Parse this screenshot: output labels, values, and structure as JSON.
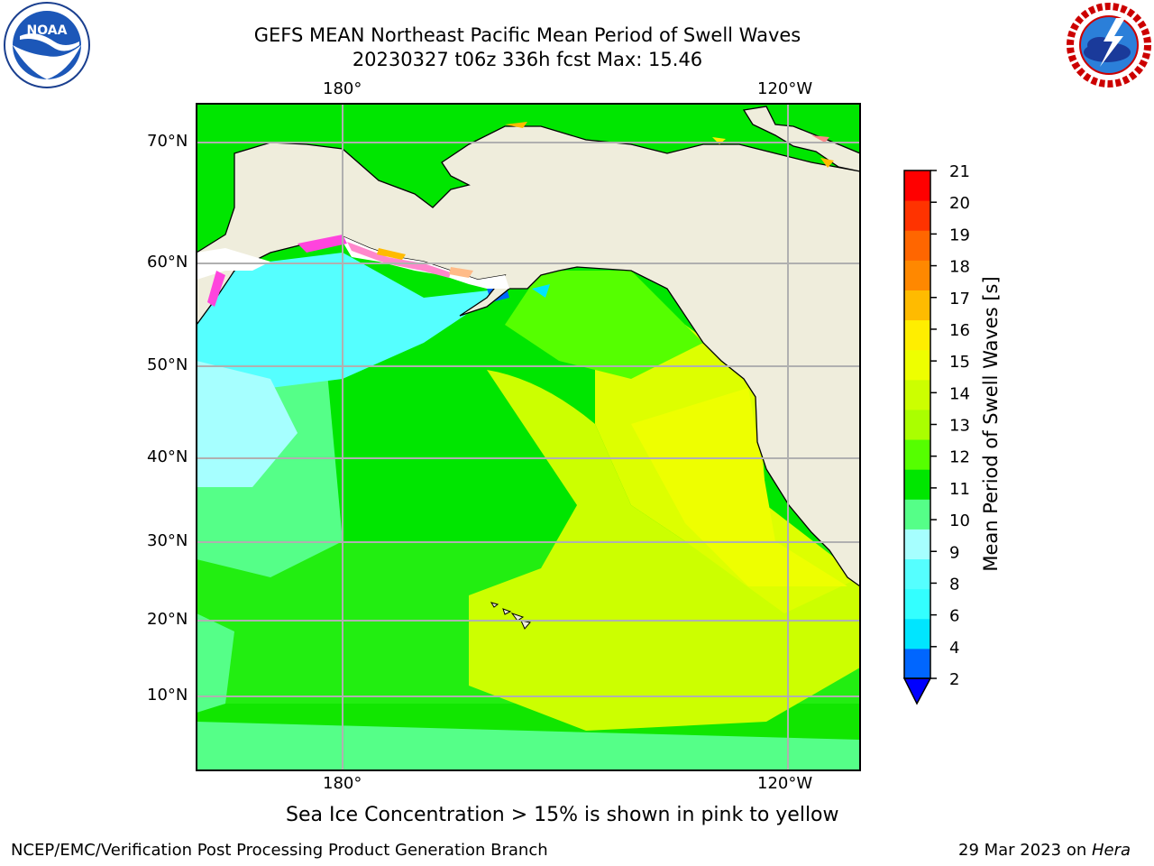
{
  "title": {
    "line1": "GEFS MEAN Northeast Pacific Mean Period of Swell Waves",
    "line2": "20230327 t06z 336h fcst   Max: 15.46"
  },
  "logos": {
    "left": {
      "icon": "noaa-logo",
      "text": "NOAA",
      "ring_text": "NATIONAL OCEANIC AND ATMOSPHERIC ADMINISTRATION · U.S. DEPARTMENT OF COMMERCE"
    },
    "right": {
      "icon": "nws-logo",
      "ring_text": "NATIONAL WEATHER SERVICE"
    }
  },
  "footer": {
    "caption": "Sea Ice Concentration > 15% is shown in pink to yellow",
    "left": "NCEP/EMC/Verification Post Processing Product Generation Branch",
    "right_date": "29 Mar 2023 on ",
    "right_host": "Hera"
  },
  "chart_data": {
    "type": "heatmap",
    "title": "GEFS MEAN Northeast Pacific Mean Period of Swell Waves",
    "projection": "lat-lon map",
    "x_ticks": [
      "180°",
      "120°W"
    ],
    "y_ticks": [
      "70°N",
      "60°N",
      "50°N",
      "40°N",
      "30°N",
      "20°N",
      "10°N"
    ],
    "max_value": 15.46,
    "colorbar": {
      "label": "Mean Period of Swell Waves [s]",
      "levels": [
        2,
        4,
        6,
        7,
        8,
        9,
        10,
        11,
        12,
        13,
        14,
        15,
        16,
        17,
        18,
        19,
        20,
        21
      ],
      "tick_labels": [
        "2",
        "4",
        "6",
        "8",
        "9",
        "10",
        "11",
        "12",
        "13",
        "14",
        "15",
        "16",
        "17",
        "18",
        "19",
        "20",
        "21"
      ],
      "colors": [
        "#0066ff",
        "#00e5ff",
        "#33ffff",
        "#55ffff",
        "#a6ffff",
        "#55ff88",
        "#00e600",
        "#55ff00",
        "#aaff00",
        "#ccff00",
        "#eeff00",
        "#ffee00",
        "#ffbb00",
        "#ff8800",
        "#ff6600",
        "#ff3300",
        "#ff0000"
      ],
      "extend": "min",
      "under_color": "#0000ff"
    },
    "colors": {
      "land": "#efeddc",
      "ice": "#ffffff",
      "grid": "#b0b0b0"
    }
  }
}
